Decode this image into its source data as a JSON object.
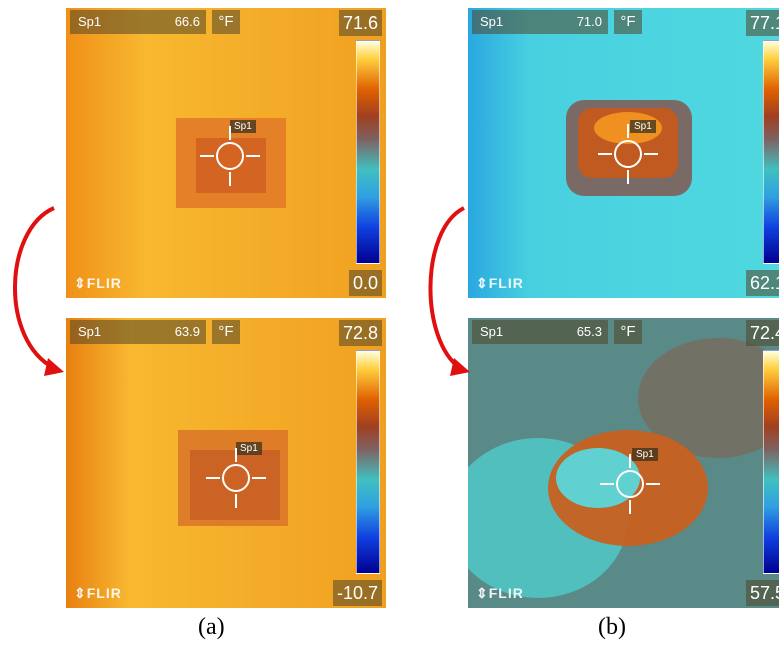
{
  "panels": {
    "a_top": {
      "sp_label": "Sp1",
      "sp_value": "66.6",
      "unit": "°F",
      "max": "71.6",
      "min": "0.0",
      "logo": "FLIR",
      "tag": "Sp1"
    },
    "a_bottom": {
      "sp_label": "Sp1",
      "sp_value": "63.9",
      "unit": "°F",
      "max": "72.8",
      "min": "-10.7",
      "logo": "FLIR",
      "tag": "Sp1"
    },
    "b_top": {
      "sp_label": "Sp1",
      "sp_value": "71.0",
      "unit": "°F",
      "max": "77.1",
      "min": "62.1",
      "logo": "FLIR",
      "tag": "Sp1"
    },
    "b_bottom": {
      "sp_label": "Sp1",
      "sp_value": "65.3",
      "unit": "°F",
      "max": "72.4",
      "min": "57.5",
      "logo": "FLIR",
      "tag": "Sp1"
    }
  },
  "captions": {
    "a": "(a)",
    "b": "(b)"
  },
  "colors": {
    "arrow": "#e01010",
    "orange_bg": "#f5a020",
    "cyan_bg": "#40d0d8",
    "dark_spot": "#c05020"
  }
}
